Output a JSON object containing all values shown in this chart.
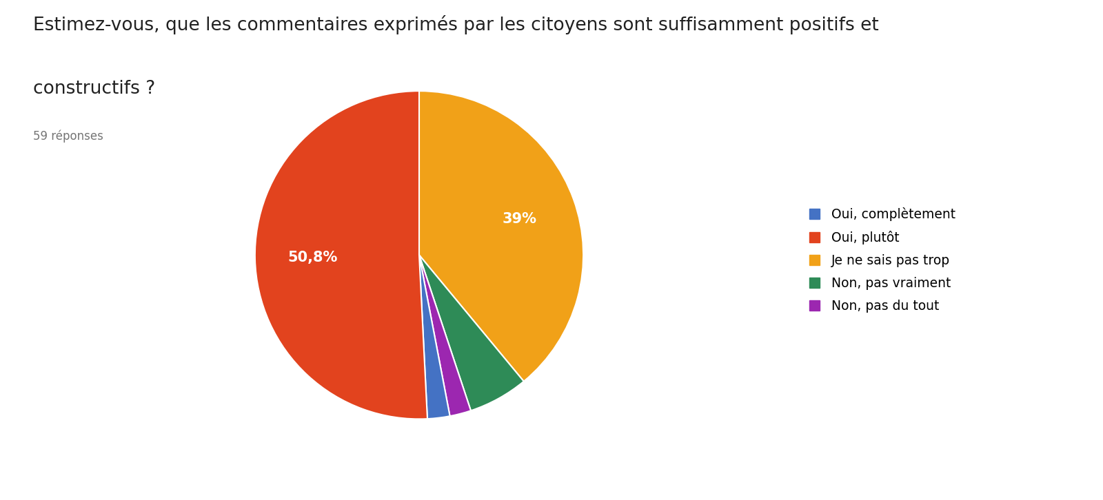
{
  "title_line1": "Estimez-vous, que les commentaires exprimés par les citoyens sont suffisamment positifs et",
  "title_line2": "constructifs ?",
  "subtitle": "59 réponses",
  "labels": [
    "Oui, complètement",
    "Oui, plutôt",
    "Je ne sais pas trop",
    "Non, pas vraiment",
    "Non, pas du tout"
  ],
  "values": [
    2.2,
    50.8,
    39.0,
    5.9,
    2.1
  ],
  "colors": [
    "#4472C4",
    "#E2431E",
    "#F1A118",
    "#2E8B57",
    "#9C27B0"
  ],
  "pct_labels": [
    "",
    "50,8%",
    "39%",
    "",
    ""
  ],
  "background_color": "#ffffff",
  "title_fontsize": 19,
  "subtitle_fontsize": 12,
  "legend_fontsize": 13.5
}
